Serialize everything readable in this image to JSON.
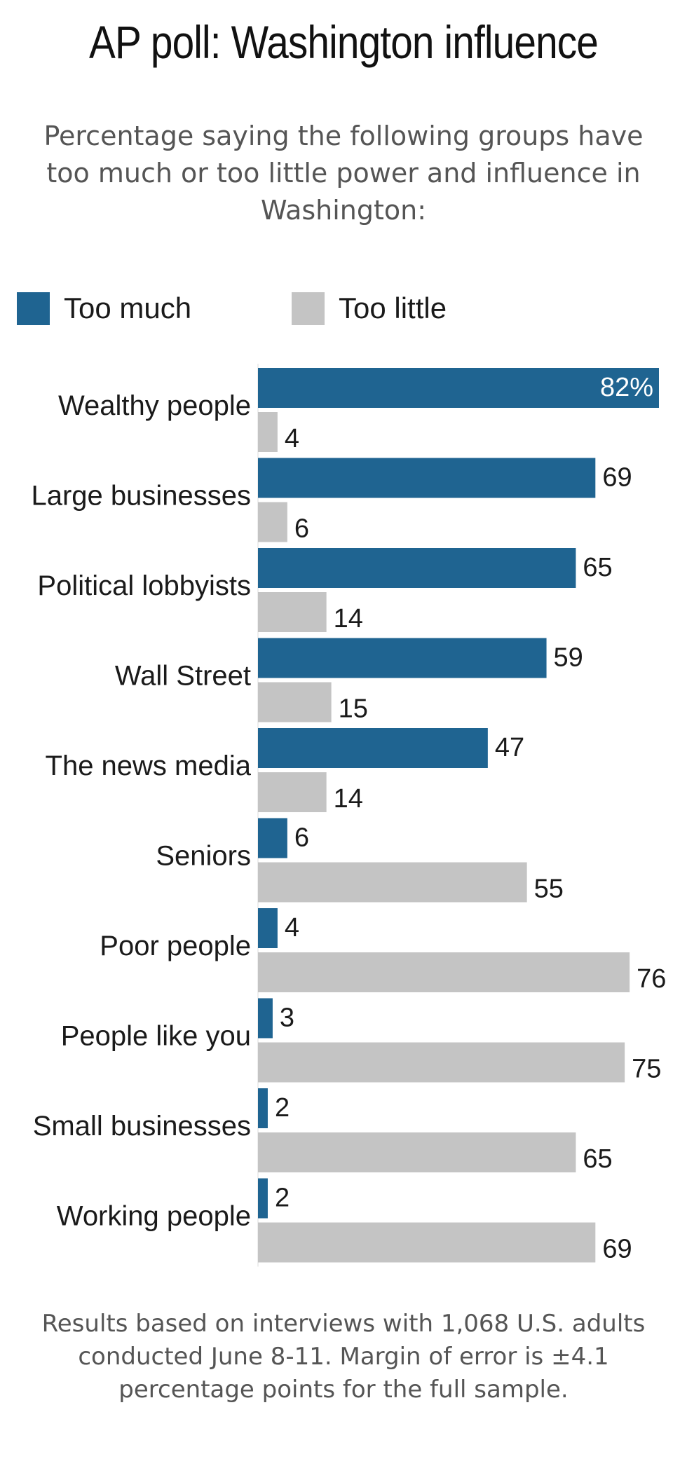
{
  "title": "AP poll: Washington influence",
  "subtitle": "Percentage saying the following groups have too much or too little power and influence in Washington:",
  "footnote": "Results based on interviews with 1,068 U.S. adults conducted June 8-11. Margin of error is ±4.1 percentage points for the full sample.",
  "colors": {
    "too_much": "#1f6491",
    "too_little": "#c4c4c4",
    "axis": "#dddddd"
  },
  "legend": {
    "too_much": "Too much",
    "too_little": "Too little"
  },
  "chart_data": {
    "type": "bar",
    "orientation": "horizontal",
    "categories": [
      "Wealthy people",
      "Large businesses",
      "Political lobbyists",
      "Wall Street",
      "The news media",
      "Seniors",
      "Poor people",
      "People like you",
      "Small businesses",
      "Working people"
    ],
    "series": [
      {
        "name": "Too much",
        "values": [
          82,
          69,
          65,
          59,
          47,
          6,
          4,
          3,
          2,
          2
        ]
      },
      {
        "name": "Too little",
        "values": [
          4,
          6,
          14,
          15,
          14,
          55,
          76,
          75,
          65,
          69
        ]
      }
    ],
    "value_labels": {
      "too_much": [
        "82%",
        "69",
        "65",
        "59",
        "47",
        "6",
        "4",
        "3",
        "2",
        "2"
      ],
      "too_little": [
        "4",
        "6",
        "14",
        "15",
        "14",
        "55",
        "76",
        "75",
        "65",
        "69"
      ]
    },
    "xlim": [
      0,
      82
    ],
    "grid": false,
    "legend_position": "top-left"
  }
}
